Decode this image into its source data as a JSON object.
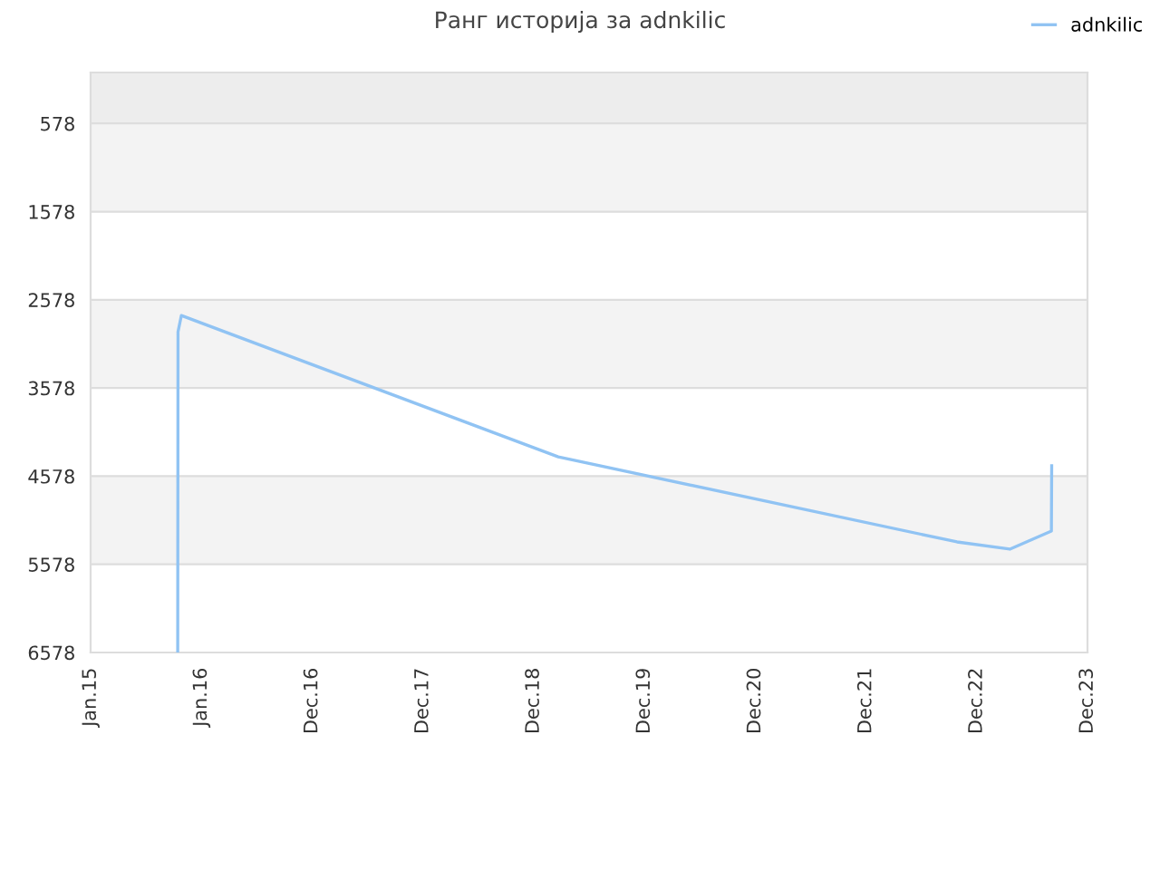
{
  "chart_data": {
    "type": "line",
    "title": "Ранг историја за adnkilic",
    "series": [
      {
        "name": "adnkilic",
        "color": "#90c3f3",
        "x": [
          "2015-10-15",
          "2015-10-16",
          "2015-10-27",
          "2019-03-22",
          "2022-10-26",
          "2023-04-18",
          "2023-09-02",
          "2023-09-03"
        ],
        "values": [
          6578,
          2941,
          2756,
          4359,
          5324,
          5406,
          5201,
          4461
        ]
      }
    ],
    "xlim": [
      "2015-01-01",
      "2023-12-30"
    ],
    "xticks": [
      {
        "value": "2015-01-01",
        "label": "Jan.15"
      },
      {
        "value": "2016-01-01",
        "label": "Jan.16"
      },
      {
        "value": "2016-12-31",
        "label": "Dec.16"
      },
      {
        "value": "2017-12-31",
        "label": "Dec.17"
      },
      {
        "value": "2018-12-31",
        "label": "Dec.18"
      },
      {
        "value": "2019-12-31",
        "label": "Dec.19"
      },
      {
        "value": "2020-12-30",
        "label": "Dec.20"
      },
      {
        "value": "2021-12-30",
        "label": "Dec.21"
      },
      {
        "value": "2022-12-30",
        "label": "Dec.22"
      },
      {
        "value": "2023-12-30",
        "label": "Dec.23"
      }
    ],
    "ylim": [
      6578,
      0
    ],
    "yticks": [
      578,
      1578,
      2578,
      3578,
      4578,
      5578,
      6578
    ],
    "bands": [
      {
        "axis": "y",
        "from": 0,
        "to": 578,
        "color": "#ededed"
      },
      {
        "axis": "y",
        "from": 578,
        "to": 1578,
        "color": "#f3f3f3"
      },
      {
        "axis": "y",
        "from": 2578,
        "to": 3578,
        "color": "#f3f3f3"
      },
      {
        "axis": "y",
        "from": 4578,
        "to": 5578,
        "color": "#f3f3f3"
      }
    ],
    "grid": "y",
    "legend": "top right",
    "marker": "none",
    "line_style": "solid"
  }
}
